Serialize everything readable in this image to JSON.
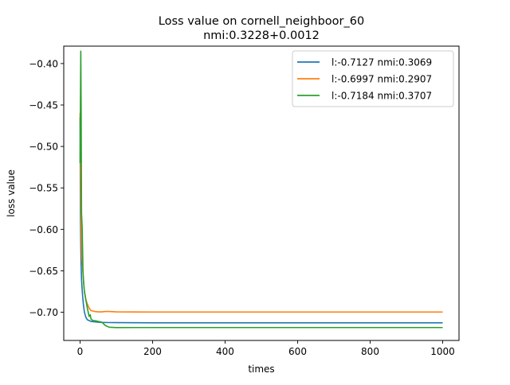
{
  "chart_data": {
    "type": "line",
    "title": "Loss value on cornell_neighboor_60",
    "subtitle": "nmi:0.3228+0.0012",
    "xlabel": "times",
    "ylabel": "loss value",
    "xlim": [
      -45,
      1045
    ],
    "ylim": [
      -0.734,
      -0.379
    ],
    "xticks": [
      0,
      200,
      400,
      600,
      800,
      1000
    ],
    "xtick_labels": [
      "0",
      "200",
      "400",
      "600",
      "800",
      "1000"
    ],
    "yticks": [
      -0.4,
      -0.45,
      -0.5,
      -0.55,
      -0.6,
      -0.65,
      -0.7
    ],
    "ytick_labels": [
      "−0.40",
      "−0.45",
      "−0.50",
      "−0.55",
      "−0.60",
      "−0.65",
      "−0.70"
    ],
    "grid": false,
    "legend_position": "top-right",
    "series": [
      {
        "name": "l:-0.7127 nmi:0.3069",
        "color": "#1f77b4",
        "x": [
          0,
          1,
          2,
          3,
          4,
          5,
          7,
          9,
          12,
          16,
          20,
          25,
          30,
          40,
          50,
          60,
          80,
          100,
          150,
          200,
          400,
          600,
          800,
          1000
        ],
        "y": [
          -0.465,
          -0.58,
          -0.62,
          -0.645,
          -0.66,
          -0.668,
          -0.68,
          -0.69,
          -0.7,
          -0.706,
          -0.709,
          -0.71,
          -0.711,
          -0.7115,
          -0.712,
          -0.7122,
          -0.7124,
          -0.7125,
          -0.7126,
          -0.7127,
          -0.7127,
          -0.7127,
          -0.7127,
          -0.7127
        ]
      },
      {
        "name": "l:-0.6997 nmi:0.2907",
        "color": "#ff7f0e",
        "x": [
          0,
          1,
          2,
          3,
          4,
          5,
          7,
          9,
          12,
          16,
          20,
          25,
          30,
          40,
          50,
          60,
          70,
          80,
          100,
          150,
          200,
          400,
          600,
          800,
          1000
        ],
        "y": [
          -0.46,
          -0.5,
          -0.56,
          -0.6,
          -0.62,
          -0.635,
          -0.645,
          -0.66,
          -0.675,
          -0.685,
          -0.69,
          -0.695,
          -0.698,
          -0.699,
          -0.6995,
          -0.6995,
          -0.699,
          -0.699,
          -0.6995,
          -0.6996,
          -0.6997,
          -0.6997,
          -0.6997,
          -0.6997,
          -0.6997
        ]
      },
      {
        "name": "l:-0.7184 nmi:0.3707",
        "color": "#2ca02c",
        "x": [
          0,
          1,
          2,
          3,
          4,
          5,
          6,
          8,
          10,
          12,
          16,
          20,
          25,
          28,
          30,
          35,
          40,
          50,
          60,
          70,
          80,
          100,
          150,
          200,
          400,
          600,
          800,
          1000
        ],
        "y": [
          -0.52,
          -0.45,
          -0.385,
          -0.46,
          -0.58,
          -0.59,
          -0.6,
          -0.65,
          -0.665,
          -0.675,
          -0.685,
          -0.695,
          -0.705,
          -0.703,
          -0.708,
          -0.71,
          -0.71,
          -0.711,
          -0.712,
          -0.716,
          -0.718,
          -0.7185,
          -0.7184,
          -0.7184,
          -0.7184,
          -0.7184,
          -0.7184,
          -0.7184
        ]
      }
    ]
  }
}
